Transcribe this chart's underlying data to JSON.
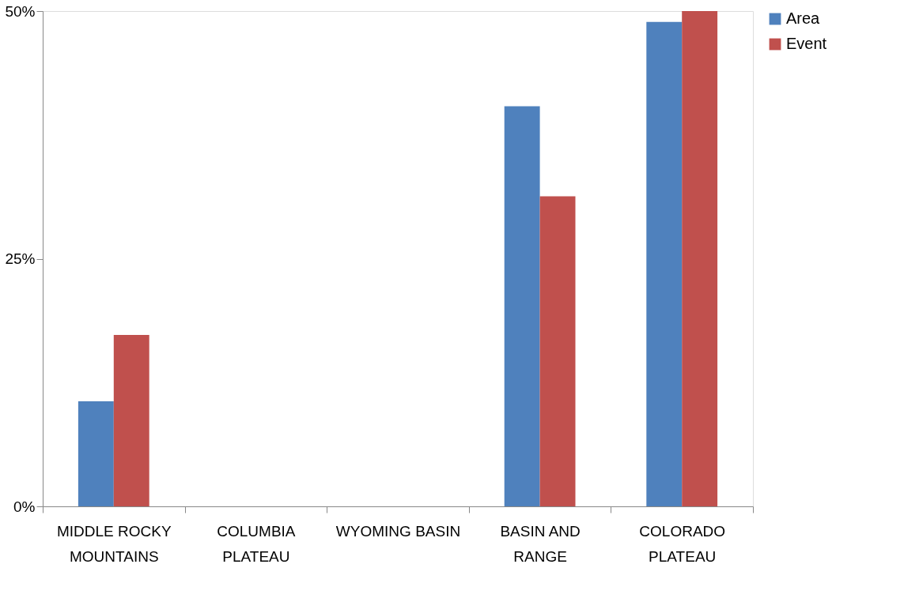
{
  "chart_data": {
    "type": "bar",
    "categories": [
      "MIDDLE ROCKY MOUNTAINS",
      "COLUMBIA PLATEAU",
      "WYOMING BASIN",
      "BASIN AND RANGE",
      "COLORADO PLATEAU"
    ],
    "series": [
      {
        "name": "Area",
        "color": "#4f81bd",
        "values": [
          10.6,
          0,
          0,
          40.4,
          48.9
        ]
      },
      {
        "name": "Event",
        "color": "#c0504d",
        "values": [
          17.3,
          0,
          0,
          31.3,
          50
        ]
      }
    ],
    "ylim": [
      0,
      50
    ],
    "yticks": [
      {
        "value": 0,
        "label": "0%"
      },
      {
        "value": 25,
        "label": "25%"
      },
      {
        "value": 50,
        "label": "50%"
      }
    ],
    "grid": false,
    "legend": "right"
  }
}
